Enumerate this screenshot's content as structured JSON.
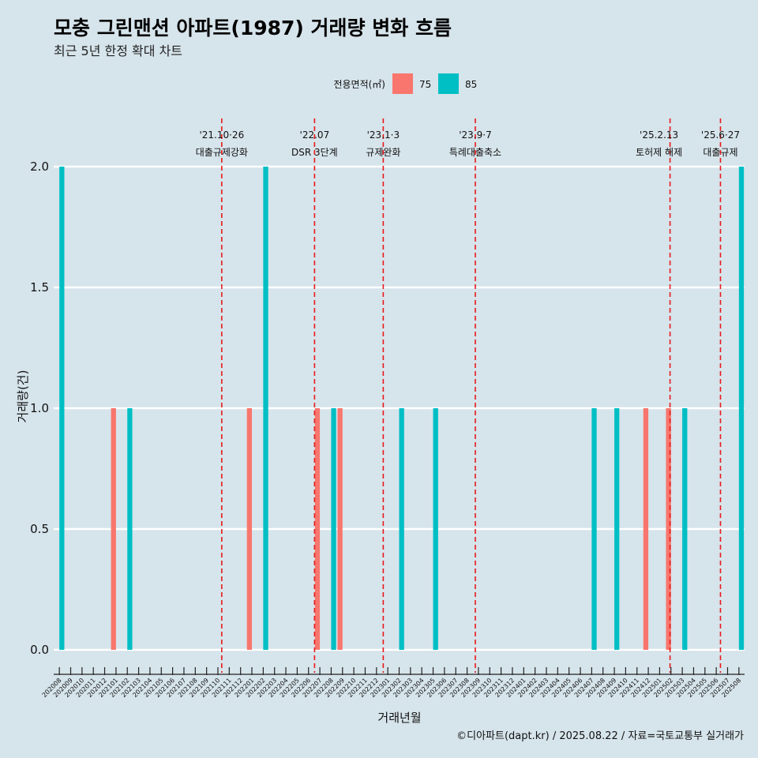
{
  "chart_data": {
    "type": "bar",
    "title": "모충 그린맨션 아파트(1987) 거래량 변화 흐름",
    "subtitle": "최근 5년 한정 확대 차트",
    "xlabel": "거래년월",
    "ylabel": "거래량(건)",
    "ylim": [
      0,
      2
    ],
    "yticks": [
      "0.0",
      "0.5",
      "1.0",
      "1.5",
      "2.0"
    ],
    "grid": true,
    "legend": {
      "title": "전용면적(㎡)",
      "position": "top"
    },
    "categories": [
      "202008",
      "202009",
      "202010",
      "202011",
      "202012",
      "202101",
      "202102",
      "202103",
      "202104",
      "202105",
      "202106",
      "202107",
      "202108",
      "202109",
      "202110",
      "202111",
      "202112",
      "202201",
      "202202",
      "202203",
      "202204",
      "202205",
      "202206",
      "202207",
      "202208",
      "202209",
      "202210",
      "202211",
      "202212",
      "202301",
      "202302",
      "202303",
      "202304",
      "202305",
      "202306",
      "202307",
      "202308",
      "202309",
      "202310",
      "202311",
      "202312",
      "202401",
      "202402",
      "202403",
      "202404",
      "202405",
      "202406",
      "202407",
      "202408",
      "202409",
      "202410",
      "202411",
      "202412",
      "202501",
      "202502",
      "202503",
      "202504",
      "202505",
      "202506",
      "202507",
      "202508"
    ],
    "series": [
      {
        "name": "75",
        "color": "#f8766d",
        "values": [
          0,
          0,
          0,
          0,
          0,
          1,
          0,
          0,
          0,
          0,
          0,
          0,
          0,
          0,
          0,
          0,
          0,
          1,
          0,
          0,
          0,
          0,
          0,
          1,
          0,
          1,
          0,
          0,
          0,
          0,
          0,
          0,
          0,
          0,
          0,
          0,
          0,
          0,
          0,
          0,
          0,
          0,
          0,
          0,
          0,
          0,
          0,
          0,
          0,
          0,
          0,
          0,
          1,
          0,
          1,
          0,
          0,
          0,
          0,
          0,
          0
        ]
      },
      {
        "name": "85",
        "color": "#00bfc4",
        "values": [
          2,
          0,
          0,
          0,
          0,
          0,
          1,
          0,
          0,
          0,
          0,
          0,
          0,
          0,
          0,
          0,
          0,
          0,
          2,
          0,
          0,
          0,
          0,
          0,
          1,
          0,
          0,
          0,
          0,
          0,
          1,
          0,
          0,
          1,
          0,
          0,
          0,
          0,
          0,
          0,
          0,
          0,
          0,
          0,
          0,
          0,
          0,
          1,
          0,
          1,
          0,
          0,
          0,
          0,
          0,
          1,
          0,
          0,
          0,
          0,
          2
        ]
      }
    ],
    "events": [
      {
        "date": "'21.10·26",
        "label": "대출규제강화",
        "month": "202110",
        "day": 26
      },
      {
        "date": "'22.07",
        "label": "DSR 3단계",
        "month": "202207",
        "day": 1
      },
      {
        "date": "'23.1·3",
        "label": "규제완화",
        "month": "202301",
        "day": 3
      },
      {
        "date": "'23.9·7",
        "label": "특례대출축소",
        "month": "202309",
        "day": 7
      },
      {
        "date": "'25.2.13",
        "label": "토허제 해제",
        "month": "202502",
        "day": 13
      },
      {
        "date": "'25.6·27",
        "label": "대출규제",
        "month": "202506",
        "day": 27
      }
    ]
  },
  "caption": "©디아파트(dapt.kr) / 2025.08.22 / 자료=국토교통부 실거래가"
}
